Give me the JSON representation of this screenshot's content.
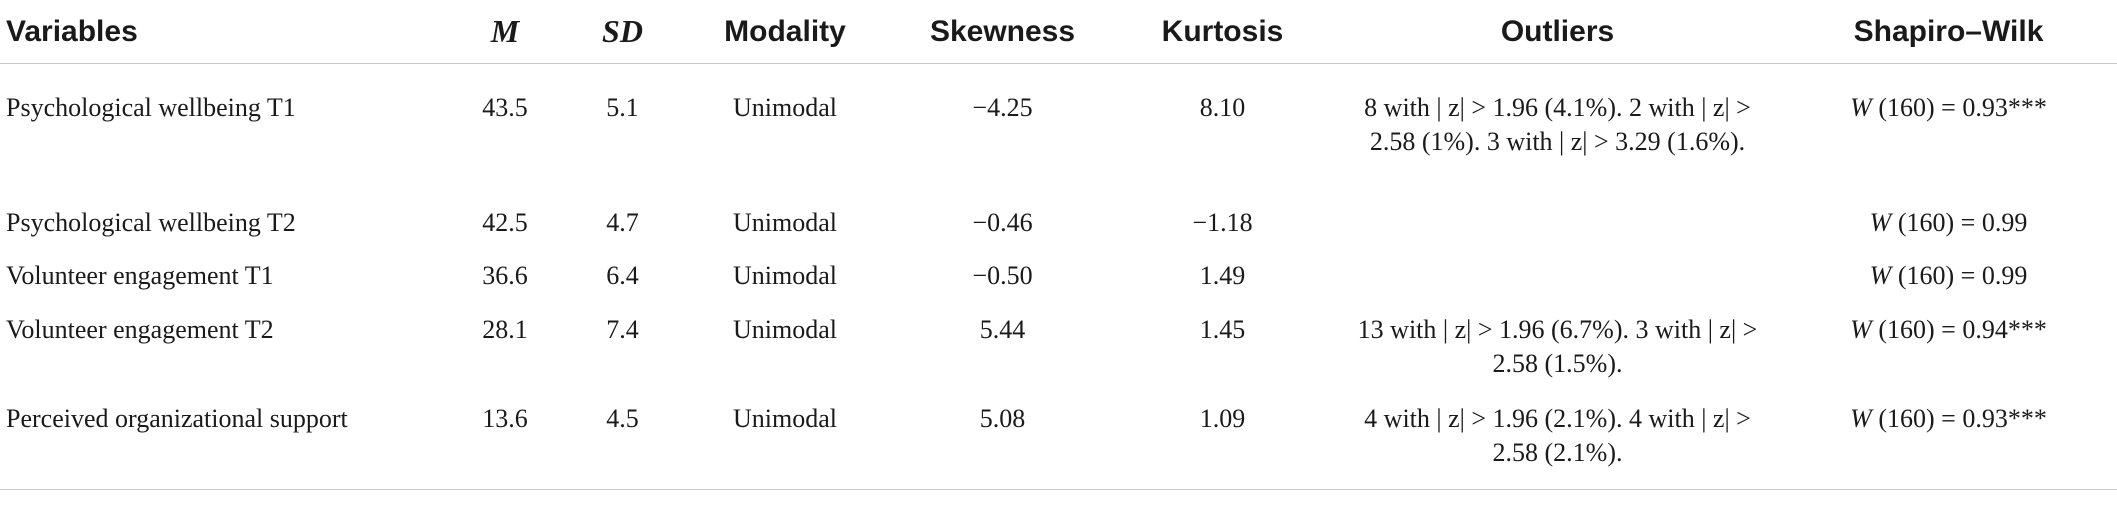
{
  "table": {
    "headers": {
      "variables": "Variables",
      "m": "M",
      "sd": "SD",
      "modality": "Modality",
      "skewness": "Skewness",
      "kurtosis": "Kurtosis",
      "outliers": "Outliers",
      "shapiro_wilk": "Shapiro–Wilk"
    },
    "rows": [
      {
        "variable": "Psychological wellbeing T1",
        "m": "43.5",
        "sd": "5.1",
        "modality": "Unimodal",
        "skewness": "−4.25",
        "kurtosis": "8.10",
        "outliers": "8 with | z| > 1.96 (4.1%). 2 with | z| > 2.58 (1%). 3 with | z| > 3.29 (1.6%).",
        "shapiro_stat": "W",
        "shapiro_rest": " (160) = 0.93***"
      },
      {
        "variable": "Psychological wellbeing T2",
        "m": "42.5",
        "sd": "4.7",
        "modality": "Unimodal",
        "skewness": "−0.46",
        "kurtosis": "−1.18",
        "outliers": "",
        "shapiro_stat": "W",
        "shapiro_rest": " (160) = 0.99"
      },
      {
        "variable": "Volunteer engagement T1",
        "m": "36.6",
        "sd": "6.4",
        "modality": "Unimodal",
        "skewness": "−0.50",
        "kurtosis": "1.49",
        "outliers": "",
        "shapiro_stat": "W",
        "shapiro_rest": " (160) = 0.99"
      },
      {
        "variable": "Volunteer engagement T2",
        "m": "28.1",
        "sd": "7.4",
        "modality": "Unimodal",
        "skewness": "5.44",
        "kurtosis": "1.45",
        "outliers": "13 with | z| > 1.96 (6.7%). 3 with | z| > 2.58 (1.5%).",
        "shapiro_stat": "W",
        "shapiro_rest": " (160) = 0.94***"
      },
      {
        "variable": "Perceived organizational support",
        "m": "13.6",
        "sd": "4.5",
        "modality": "Unimodal",
        "skewness": "5.08",
        "kurtosis": "1.09",
        "outliers": "4 with | z| > 1.96 (2.1%). 4 with | z| > 2.58 (2.1%).",
        "shapiro_stat": "W",
        "shapiro_rest": " (160) = 0.93***"
      }
    ]
  }
}
